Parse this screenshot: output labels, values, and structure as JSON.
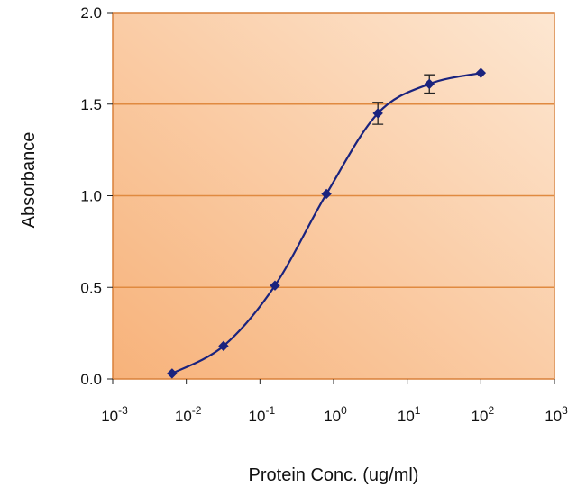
{
  "chart_data": {
    "type": "line",
    "title": "",
    "xlabel": "Protein Conc. (ug/ml)",
    "ylabel": "Absorbance",
    "x_scale": "log",
    "xlim": [
      0.001,
      1000
    ],
    "ylim": [
      0,
      2
    ],
    "x_ticks": [
      {
        "value": 0.001,
        "base": "10",
        "exp": "-3"
      },
      {
        "value": 0.01,
        "base": "10",
        "exp": "-2"
      },
      {
        "value": 0.1,
        "base": "10",
        "exp": "-1"
      },
      {
        "value": 1,
        "base": "10",
        "exp": "0"
      },
      {
        "value": 10,
        "base": "10",
        "exp": "1"
      },
      {
        "value": 100,
        "base": "10",
        "exp": "2"
      },
      {
        "value": 1000,
        "base": "10",
        "exp": "3"
      }
    ],
    "y_ticks": [
      {
        "value": 0,
        "label": "0.0"
      },
      {
        "value": 0.5,
        "label": "0.5"
      },
      {
        "value": 1,
        "label": "1.0"
      },
      {
        "value": 1.5,
        "label": "1.5"
      },
      {
        "value": 2,
        "label": "2.0"
      }
    ],
    "grid": {
      "horizontal": true,
      "vertical": false
    },
    "series": [
      {
        "color": "#1a237e",
        "points": [
          {
            "x": 0.0064,
            "y": 0.03
          },
          {
            "x": 0.032,
            "y": 0.18
          },
          {
            "x": 0.16,
            "y": 0.51
          },
          {
            "x": 0.8,
            "y": 1.01
          },
          {
            "x": 4.0,
            "y": 1.45,
            "err": 0.06
          },
          {
            "x": 20,
            "y": 1.61,
            "err": 0.05
          },
          {
            "x": 100,
            "y": 1.67
          }
        ]
      }
    ],
    "colors": {
      "background_light": "#fde7d2",
      "background_dark": "#f7b27a",
      "frame": "#d9803a",
      "gridline": "#e08a40",
      "line": "#1a237e"
    }
  }
}
